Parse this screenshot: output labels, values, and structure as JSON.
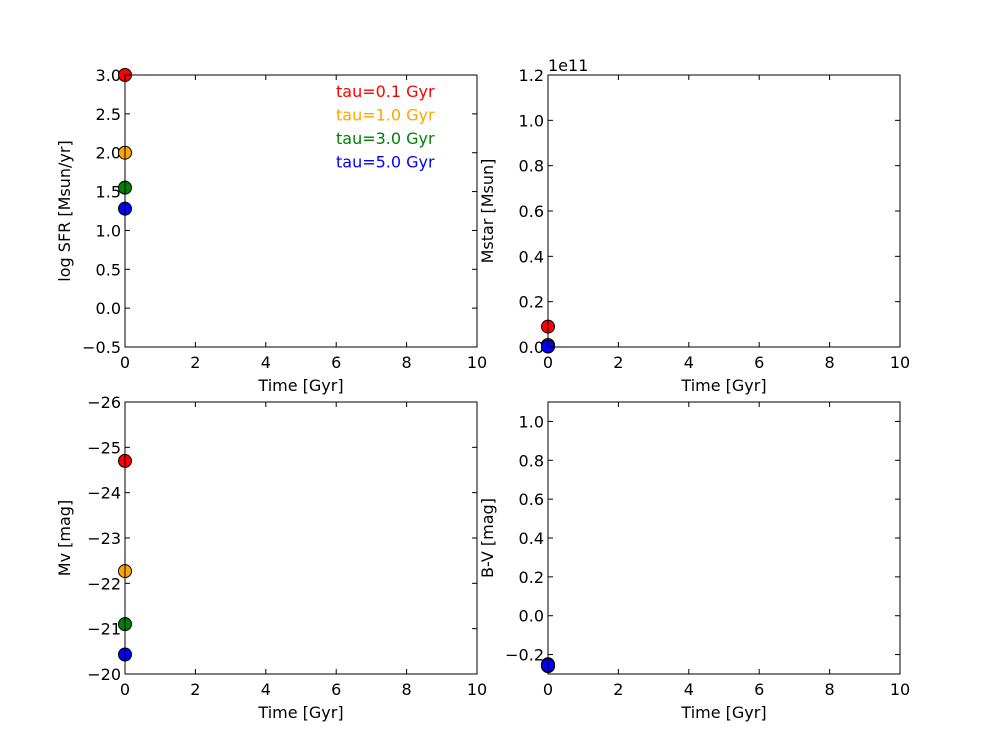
{
  "chart_data": [
    {
      "type": "scatter",
      "title": "",
      "xlabel": "Time [Gyr]",
      "ylabel": "log SFR [Msun/yr]",
      "xlim": [
        0,
        10
      ],
      "ylim": [
        -0.5,
        3.0
      ],
      "y_inverted": false,
      "offset_text": "",
      "xticks": [
        "0",
        "2",
        "4",
        "6",
        "8",
        "10"
      ],
      "yticks": [
        "−0.5",
        "0.0",
        "0.5",
        "1.0",
        "1.5",
        "2.0",
        "2.5",
        "3.0"
      ],
      "legend": "top-right text labels",
      "series": [
        {
          "name": "tau=0.1 Gyr",
          "x": [
            0
          ],
          "y": [
            3.0
          ]
        },
        {
          "name": "tau=1.0 Gyr",
          "x": [
            0
          ],
          "y": [
            2.0
          ]
        },
        {
          "name": "tau=3.0 Gyr",
          "x": [
            0
          ],
          "y": [
            1.55
          ]
        },
        {
          "name": "tau=5.0 Gyr",
          "x": [
            0
          ],
          "y": [
            1.28
          ]
        }
      ]
    },
    {
      "type": "scatter",
      "title": "",
      "xlabel": "Time [Gyr]",
      "ylabel": "Mstar [Msun]",
      "xlim": [
        0,
        10
      ],
      "ylim": [
        0.0,
        1.2
      ],
      "y_inverted": false,
      "offset_text": "1e11",
      "xticks": [
        "0",
        "2",
        "4",
        "6",
        "8",
        "10"
      ],
      "yticks": [
        "0.0",
        "0.2",
        "0.4",
        "0.6",
        "0.8",
        "1.0",
        "1.2"
      ],
      "series": [
        {
          "x": [
            0
          ],
          "y": [
            0.09
          ]
        },
        {
          "x": [
            0
          ],
          "y": [
            0.009
          ]
        },
        {
          "x": [
            0
          ],
          "y": [
            0.003
          ]
        },
        {
          "x": [
            0
          ],
          "y": [
            0.002
          ]
        }
      ]
    },
    {
      "type": "scatter",
      "title": "",
      "xlabel": "Time [Gyr]",
      "ylabel": "Mv [mag]",
      "xlim": [
        0,
        10
      ],
      "ylim": [
        -20,
        -26
      ],
      "y_inverted": true,
      "offset_text": "",
      "xticks": [
        "0",
        "2",
        "4",
        "6",
        "8",
        "10"
      ],
      "yticks": [
        "−20",
        "−21",
        "−22",
        "−23",
        "−24",
        "−25",
        "−26"
      ],
      "series": [
        {
          "x": [
            0
          ],
          "y": [
            -24.7
          ]
        },
        {
          "x": [
            0
          ],
          "y": [
            -22.27
          ]
        },
        {
          "x": [
            0
          ],
          "y": [
            -21.1
          ]
        },
        {
          "x": [
            0
          ],
          "y": [
            -20.43
          ]
        }
      ]
    },
    {
      "type": "scatter",
      "title": "",
      "xlabel": "Time [Gyr]",
      "ylabel": "B-V [mag]",
      "xlim": [
        0,
        10
      ],
      "ylim": [
        -0.3,
        1.1
      ],
      "y_inverted": false,
      "offset_text": "",
      "xticks": [
        "0",
        "2",
        "4",
        "6",
        "8",
        "10"
      ],
      "yticks": [
        "−0.2",
        "0.0",
        "0.2",
        "0.4",
        "0.6",
        "0.8",
        "1.0"
      ],
      "series": [
        {
          "x": [
            0
          ],
          "y": [
            -0.25
          ]
        },
        {
          "x": [
            0
          ],
          "y": [
            -0.255
          ]
        },
        {
          "x": [
            0
          ],
          "y": [
            -0.26
          ]
        },
        {
          "x": [
            0
          ],
          "y": [
            -0.255
          ]
        }
      ]
    }
  ],
  "colors": {
    "tau_0_1": "#ff0000",
    "tau_1_0": "#ffa500",
    "tau_3_0": "#008000",
    "tau_5_0": "#0000ff",
    "axis": "#000000",
    "background": "#ffffff"
  }
}
